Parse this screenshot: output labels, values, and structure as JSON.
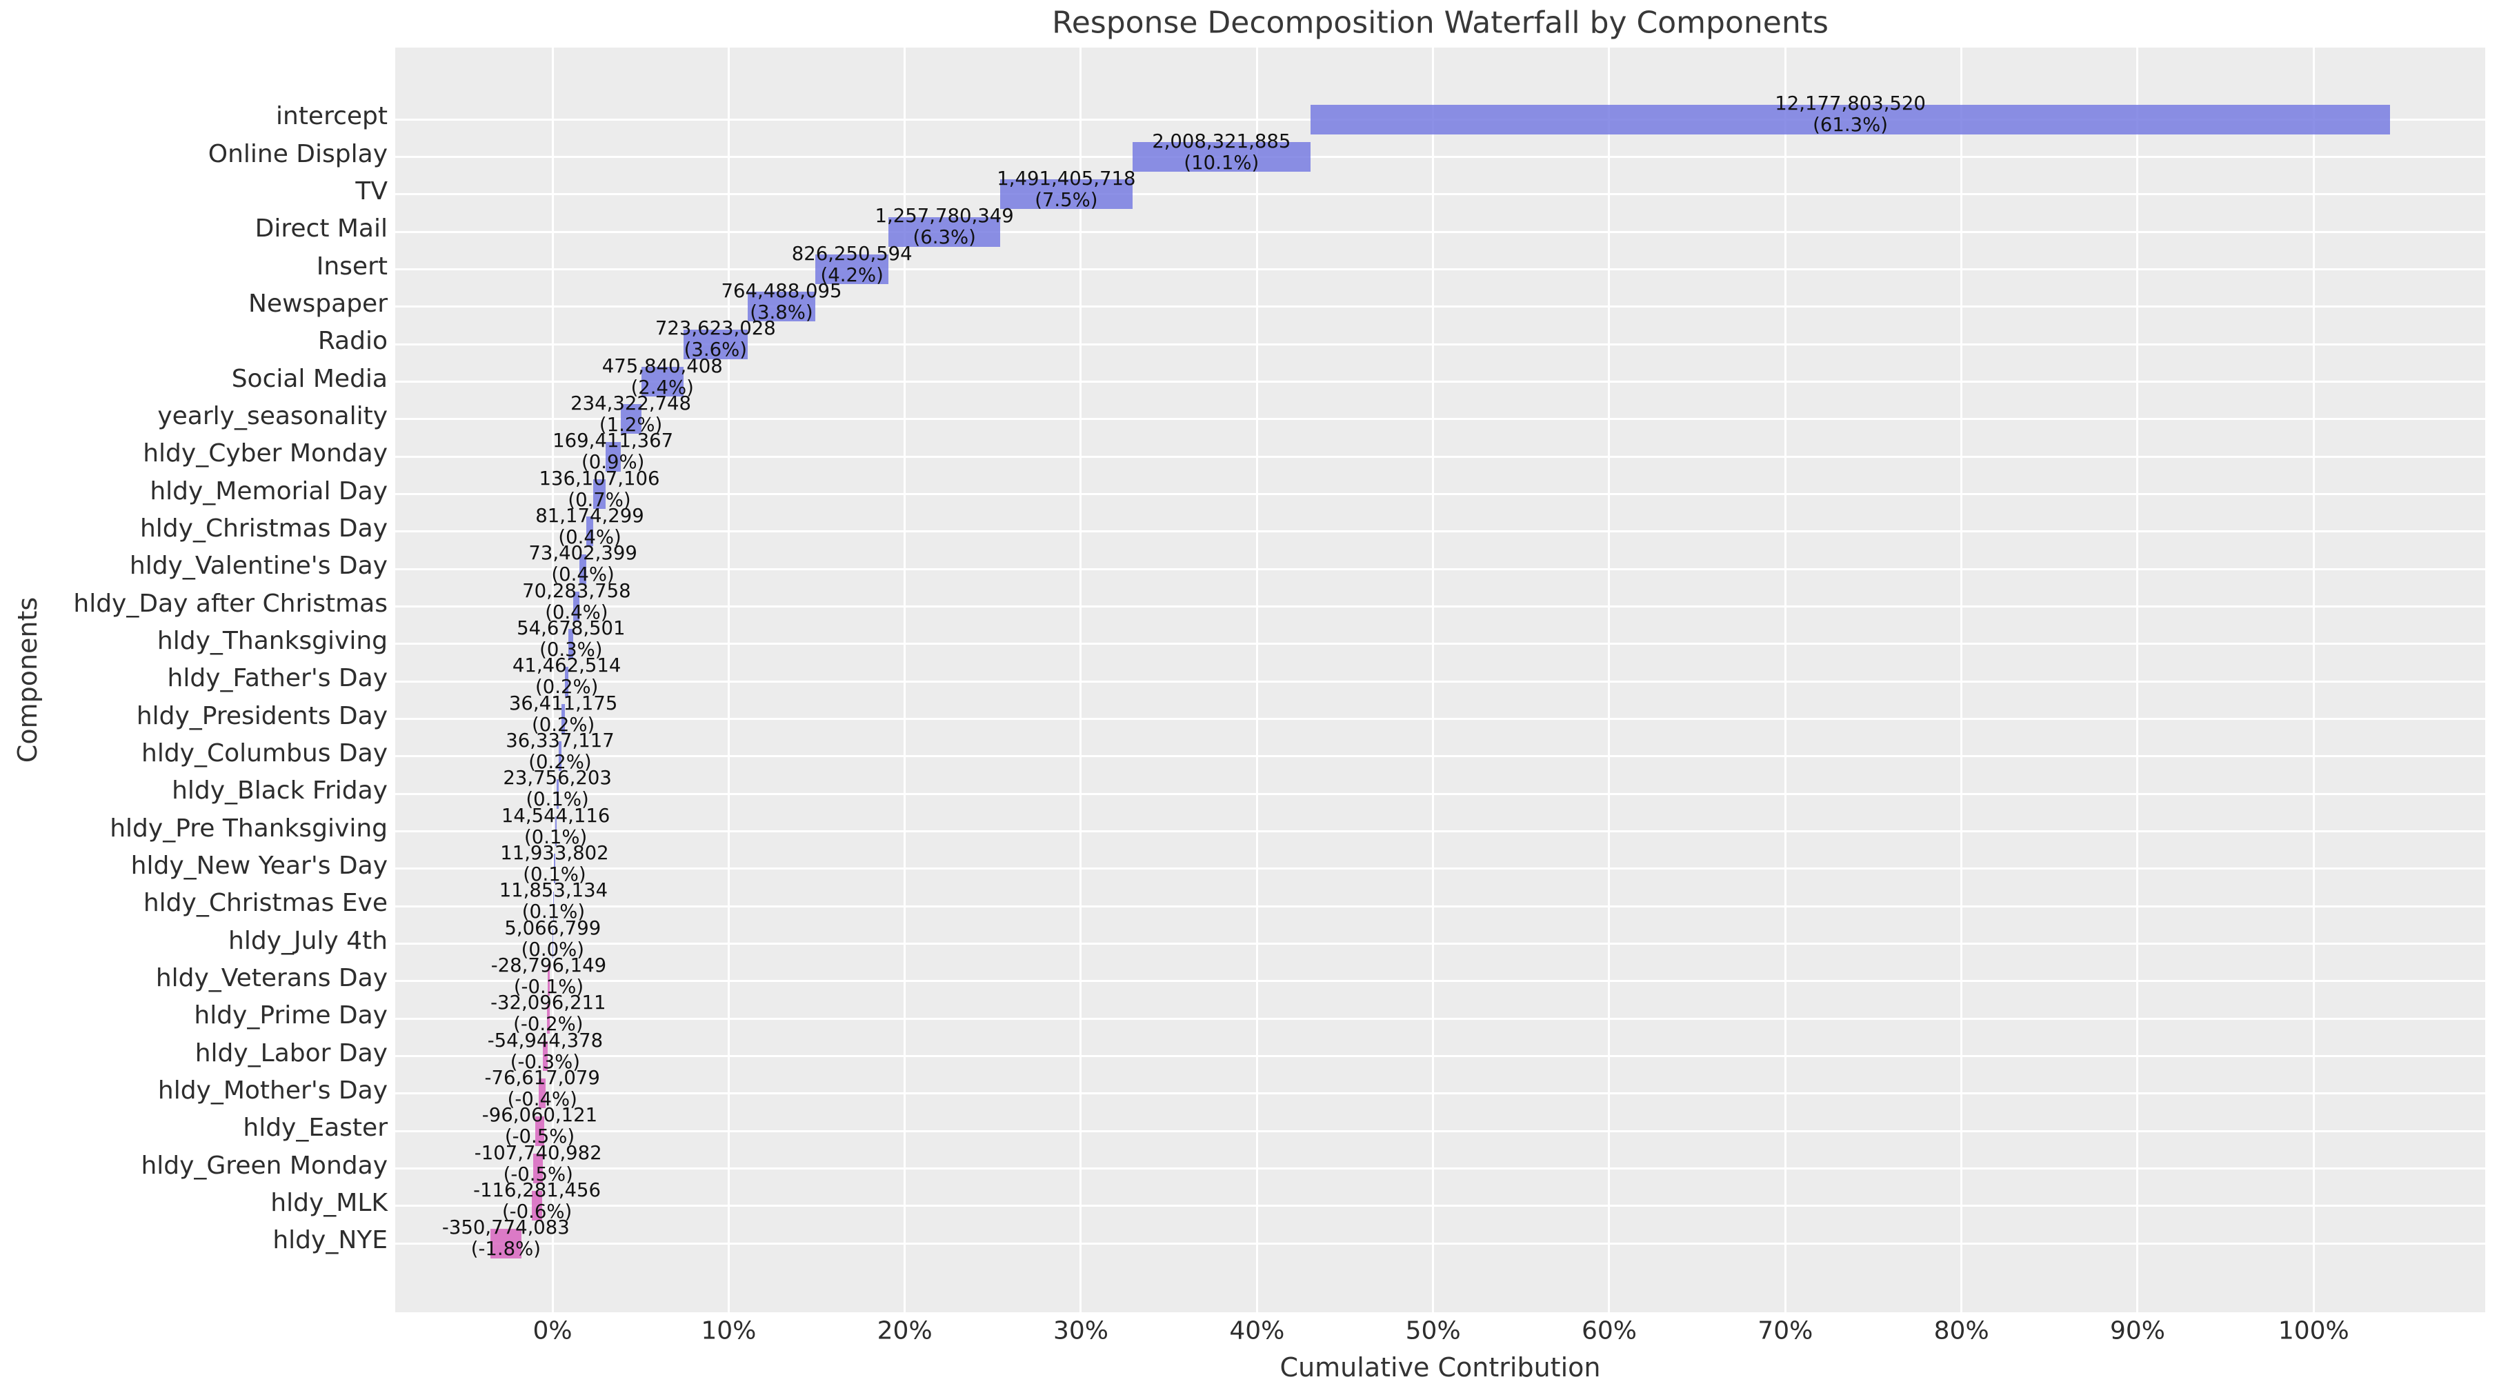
{
  "title": "Response Decomposition Waterfall by Components",
  "chart_data": {
    "type": "bar",
    "subtype": "waterfall",
    "orientation": "horizontal",
    "title": "Response Decomposition Waterfall by Components",
    "xlabel": "Cumulative Contribution",
    "ylabel": "Components",
    "legend": "none",
    "grid": true,
    "xlim": [
      -8.93,
      109.74
    ],
    "xtick_values": [
      0,
      10,
      20,
      30,
      40,
      50,
      60,
      70,
      80,
      90,
      100
    ],
    "xtick_labels": [
      "0%",
      "10%",
      "20%",
      "30%",
      "40%",
      "50%",
      "60%",
      "70%",
      "80%",
      "90%",
      "100%"
    ],
    "categories": [
      "intercept",
      "Online Display",
      "TV",
      "Direct Mail",
      "Insert",
      "Newspaper",
      "Radio",
      "Social Media",
      "yearly_seasonality",
      "hldy_Cyber Monday",
      "hldy_Memorial Day",
      "hldy_Christmas Day",
      "hldy_Valentine's Day",
      "hldy_Day after Christmas",
      "hldy_Thanksgiving",
      "hldy_Father's Day",
      "hldy_Presidents Day",
      "hldy_Columbus Day",
      "hldy_Black Friday",
      "hldy_Pre Thanksgiving",
      "hldy_New Year's Day",
      "hldy_Christmas Eve",
      "hldy_July 4th",
      "hldy_Veterans Day",
      "hldy_Prime Day",
      "hldy_Labor Day",
      "hldy_Mother's Day",
      "hldy_Easter",
      "hldy_Green Monday",
      "hldy_MLK",
      "hldy_NYE"
    ],
    "values": [
      12177803520,
      2008321885,
      1491405718,
      1257780349,
      826250594,
      764488095,
      723623028,
      475840408,
      234322748,
      169411367,
      136107106,
      81174299,
      73402399,
      70283758,
      54678501,
      41462514,
      36411175,
      36337117,
      23756203,
      14544116,
      11933802,
      11853134,
      5066799,
      -28796149,
      -32096211,
      -54944378,
      -76617079,
      -96060121,
      -107740982,
      -116281456,
      -350774083
    ],
    "value_labels": [
      "12,177,803,520",
      "2,008,321,885",
      "1,491,405,718",
      "1,257,780,349",
      "826,250,594",
      "764,488,095",
      "723,623,028",
      "475,840,408",
      "234,322,748",
      "169,411,367",
      "136,107,106",
      "81,174,299",
      "73,402,399",
      "70,283,758",
      "54,678,501",
      "41,462,514",
      "36,411,175",
      "36,337,117",
      "23,756,203",
      "14,544,116",
      "11,933,802",
      "11,853,134",
      "5,066,799",
      "-28,796,149",
      "-32,096,211",
      "-54,944,378",
      "-76,617,079",
      "-96,060,121",
      "-107,740,982",
      "-116,281,456",
      "-350,774,083"
    ],
    "pct_labels": [
      "(61.3%)",
      "(10.1%)",
      "(7.5%)",
      "(6.3%)",
      "(4.2%)",
      "(3.8%)",
      "(3.6%)",
      "(2.4%)",
      "(1.2%)",
      "(0.9%)",
      "(0.7%)",
      "(0.4%)",
      "(0.4%)",
      "(0.4%)",
      "(0.3%)",
      "(0.2%)",
      "(0.2%)",
      "(0.2%)",
      "(0.1%)",
      "(0.1%)",
      "(0.1%)",
      "(0.1%)",
      "(0.0%)",
      "(-0.1%)",
      "(-0.2%)",
      "(-0.3%)",
      "(-0.4%)",
      "(-0.5%)",
      "(-0.5%)",
      "(-0.6%)",
      "(-1.8%)"
    ],
    "colors": {
      "positive_bar": "#8487DE",
      "negative_bar": "#D877C3",
      "plot_background": "#ECECEC",
      "gridline": "#FFFFFF",
      "title_text": "#383838",
      "tick_text": "#2D2D2D",
      "annotation_text": "#111111"
    }
  }
}
